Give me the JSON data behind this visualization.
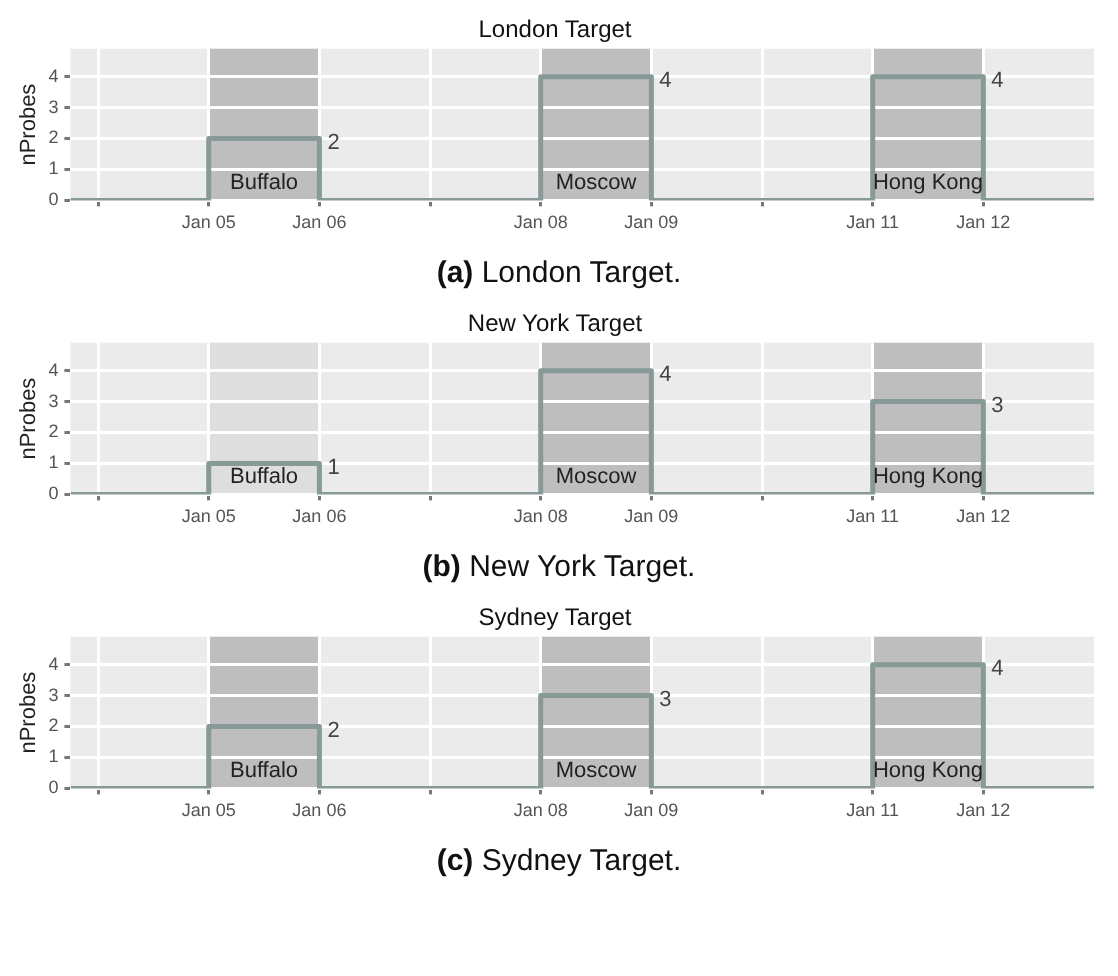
{
  "chart_data": [
    {
      "type": "step",
      "title": "London Target",
      "ylabel": "nProbes",
      "x": [
        "--01-03T18:00",
        "--01-05",
        "--01-06",
        "--01-08",
        "--01-09",
        "--01-11",
        "--01-12",
        "--01-13"
      ],
      "series": [
        {
          "color": "#879a98",
          "values": [
            0,
            2,
            0,
            4,
            0,
            4,
            0,
            0
          ]
        }
      ],
      "xlim": [
        "--01-03T18:00",
        "--01-13"
      ],
      "xticks": [
        {
          "value": "--01-04",
          "label": null
        },
        {
          "value": "--01-05",
          "label": "Jan 05"
        },
        {
          "value": "--01-06",
          "label": "Jan 06"
        },
        {
          "value": "--01-07",
          "label": null
        },
        {
          "value": "--01-08",
          "label": "Jan 08"
        },
        {
          "value": "--01-09",
          "label": "Jan 09"
        },
        {
          "value": "--01-10",
          "label": null
        },
        {
          "value": "--01-11",
          "label": "Jan 11"
        },
        {
          "value": "--01-12",
          "label": "Jan 12"
        }
      ],
      "ylim": [
        0,
        4.9
      ],
      "yticks": [
        0,
        1,
        2,
        3,
        4
      ],
      "grid": true,
      "legend": false,
      "bands": [
        {
          "axis": "x",
          "from": "--01-05",
          "to": "--01-06",
          "label": "Buffalo",
          "color": "#bebebe"
        },
        {
          "axis": "x",
          "from": "--01-08",
          "to": "--01-09",
          "label": "Moscow",
          "color": "#bebebe"
        },
        {
          "axis": "x",
          "from": "--01-11",
          "to": "--01-12",
          "label": "Hong Kong",
          "color": "#bebebe"
        }
      ],
      "annotations": [
        {
          "text": "2",
          "x": "--01-06",
          "y": 2
        },
        {
          "text": "4",
          "x": "--01-09",
          "y": 4
        },
        {
          "text": "4",
          "x": "--01-12",
          "y": 4
        },
        "(a) London Target."
      ]
    },
    {
      "type": "step",
      "title": "New York Target",
      "ylabel": "nProbes",
      "x": [
        "--01-03T18:00",
        "--01-05",
        "--01-06",
        "--01-08",
        "--01-09",
        "--01-11",
        "--01-12",
        "--01-13"
      ],
      "series": [
        {
          "color": "#879a98",
          "values": [
            0,
            1,
            0,
            4,
            0,
            3,
            0,
            0
          ]
        }
      ],
      "xlim": [
        "--01-03T18:00",
        "--01-13"
      ],
      "xticks": [
        {
          "value": "--01-04",
          "label": null
        },
        {
          "value": "--01-05",
          "label": "Jan 05"
        },
        {
          "value": "--01-06",
          "label": "Jan 06"
        },
        {
          "value": "--01-07",
          "label": null
        },
        {
          "value": "--01-08",
          "label": "Jan 08"
        },
        {
          "value": "--01-09",
          "label": "Jan 09"
        },
        {
          "value": "--01-10",
          "label": null
        },
        {
          "value": "--01-11",
          "label": "Jan 11"
        },
        {
          "value": "--01-12",
          "label": "Jan 12"
        }
      ],
      "ylim": [
        0,
        4.9
      ],
      "yticks": [
        0,
        1,
        2,
        3,
        4
      ],
      "grid": true,
      "legend": false,
      "bands": [
        {
          "axis": "x",
          "from": "--01-08",
          "to": "--01-09",
          "label": "Moscow",
          "color": "#bebebe"
        },
        {
          "axis": "x",
          "from": "--01-11",
          "to": "--01-12",
          "label": "Hong Kong",
          "color": "#bebebe"
        },
        {
          "axis": "x",
          "from": "--01-05",
          "to": "--01-06",
          "label": "Buffalo",
          "color": "#dedede"
        }
      ],
      "annotations": [
        {
          "text": "1",
          "x": "--01-06",
          "y": 1
        },
        {
          "text": "4",
          "x": "--01-09",
          "y": 4
        },
        {
          "text": "3",
          "x": "--01-12",
          "y": 3
        },
        "(b) New York Target."
      ]
    },
    {
      "type": "step",
      "title": "Sydney Target",
      "ylabel": "nProbes",
      "x": [
        "--01-03T18:00",
        "--01-05",
        "--01-06",
        "--01-08",
        "--01-09",
        "--01-11",
        "--01-12",
        "--01-13"
      ],
      "series": [
        {
          "color": "#879a98",
          "values": [
            0,
            2,
            0,
            3,
            0,
            4,
            0,
            0
          ]
        }
      ],
      "xlim": [
        "--01-03T18:00",
        "--01-13"
      ],
      "xticks": [
        {
          "value": "--01-04",
          "label": null
        },
        {
          "value": "--01-05",
          "label": "Jan 05"
        },
        {
          "value": "--01-06",
          "label": "Jan 06"
        },
        {
          "value": "--01-07",
          "label": null
        },
        {
          "value": "--01-08",
          "label": "Jan 08"
        },
        {
          "value": "--01-09",
          "label": "Jan 09"
        },
        {
          "value": "--01-10",
          "label": null
        },
        {
          "value": "--01-11",
          "label": "Jan 11"
        },
        {
          "value": "--01-12",
          "label": "Jan 12"
        }
      ],
      "ylim": [
        0,
        4.9
      ],
      "yticks": [
        0,
        1,
        2,
        3,
        4
      ],
      "grid": true,
      "legend": false,
      "bands": [
        {
          "axis": "x",
          "from": "--01-05",
          "to": "--01-06",
          "label": "Buffalo",
          "color": "#bebebe"
        },
        {
          "axis": "x",
          "from": "--01-08",
          "to": "--01-09",
          "label": "Moscow",
          "color": "#bebebe"
        },
        {
          "axis": "x",
          "from": "--01-11",
          "to": "--01-12",
          "label": "Hong Kong",
          "color": "#bebebe"
        }
      ],
      "annotations": [
        {
          "text": "2",
          "x": "--01-06",
          "y": 2
        },
        {
          "text": "3",
          "x": "--01-09",
          "y": 3
        },
        {
          "text": "4",
          "x": "--01-12",
          "y": 4
        },
        "(c) Sydney Target."
      ]
    }
  ]
}
